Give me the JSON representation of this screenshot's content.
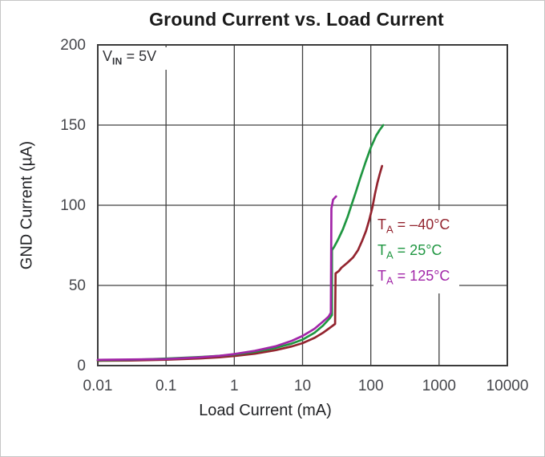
{
  "chart_data": {
    "type": "line",
    "title": "Ground Current vs. Load Current",
    "xlabel": "Load Current (mA)",
    "ylabel": "GND Current (µA)",
    "x_scale": "log",
    "xlim": [
      0.01,
      10000
    ],
    "ylim": [
      0,
      200
    ],
    "x_tick_labels": [
      "0.01",
      "0.1",
      "1",
      "10",
      "100",
      "1000",
      "10000"
    ],
    "y_ticks": [
      0,
      50,
      100,
      150,
      200
    ],
    "grid": true,
    "legend_position": "inside-right-middle",
    "annotation": {
      "t": "V",
      "sub": "IN",
      "rest": " = 5V"
    },
    "frame_color": "#3a3a3a",
    "grid_color": "#404040",
    "tick_label_color": "#45464b",
    "series": [
      {
        "name": "TA = –40°C",
        "label_t": "T",
        "label_sub": "A",
        "label_rest": " = –40°C",
        "color": "#93242f",
        "points": [
          [
            0.01,
            3.0
          ],
          [
            0.03,
            3.2
          ],
          [
            0.1,
            3.7
          ],
          [
            0.3,
            4.4
          ],
          [
            0.6,
            5.2
          ],
          [
            1,
            6.0
          ],
          [
            2,
            7.4
          ],
          [
            4,
            9.6
          ],
          [
            7,
            12.0
          ],
          [
            10,
            14.0
          ],
          [
            15,
            17.3
          ],
          [
            20,
            20.5
          ],
          [
            25,
            23.5
          ],
          [
            30,
            26.0
          ],
          [
            30.5,
            57.5
          ],
          [
            34,
            59.0
          ],
          [
            37,
            61.0
          ],
          [
            45,
            64.0
          ],
          [
            55,
            67.5
          ],
          [
            65,
            72.0
          ],
          [
            75,
            78.0
          ],
          [
            85,
            84.0
          ],
          [
            95,
            91.0
          ],
          [
            106,
            99.0
          ],
          [
            115,
            107.0
          ],
          [
            125,
            114.0
          ],
          [
            135,
            119.5
          ],
          [
            146,
            124.5
          ]
        ]
      },
      {
        "name": "TA = 25°C",
        "label_t": "T",
        "label_sub": "A",
        "label_rest": " = 25°C",
        "color": "#1f9641",
        "points": [
          [
            0.01,
            3.3
          ],
          [
            0.03,
            3.6
          ],
          [
            0.1,
            4.4
          ],
          [
            0.3,
            5.3
          ],
          [
            0.6,
            6.1
          ],
          [
            1,
            6.9
          ],
          [
            2,
            8.6
          ],
          [
            4,
            11.0
          ],
          [
            7,
            13.8
          ],
          [
            10,
            16.2
          ],
          [
            15,
            20.5
          ],
          [
            20,
            25.0
          ],
          [
            25,
            29.5
          ],
          [
            27,
            31.5
          ],
          [
            27,
            72.0
          ],
          [
            29,
            74.0
          ],
          [
            33,
            78.5
          ],
          [
            39,
            85.0
          ],
          [
            46,
            93.0
          ],
          [
            51,
            99.0
          ],
          [
            60,
            108.0
          ],
          [
            70,
            117.0
          ],
          [
            84,
            127.0
          ],
          [
            100,
            136.0
          ],
          [
            120,
            143.5
          ],
          [
            135,
            147.0
          ],
          [
            152,
            150.0
          ]
        ]
      },
      {
        "name": "TA = 125°C",
        "label_t": "T",
        "label_sub": "A",
        "label_rest": " = 125°C",
        "color": "#a226a8",
        "points": [
          [
            0.01,
            3.6
          ],
          [
            0.03,
            3.8
          ],
          [
            0.1,
            4.1
          ],
          [
            0.3,
            5.1
          ],
          [
            0.6,
            6.1
          ],
          [
            1,
            7.2
          ],
          [
            2,
            9.2
          ],
          [
            4,
            12.0
          ],
          [
            7,
            15.5
          ],
          [
            10,
            18.5
          ],
          [
            15,
            23.0
          ],
          [
            20,
            27.5
          ],
          [
            24,
            30.5
          ],
          [
            26,
            33.0
          ],
          [
            26.5,
            98.0
          ],
          [
            28,
            103.5
          ],
          [
            31,
            105.5
          ]
        ]
      }
    ]
  }
}
